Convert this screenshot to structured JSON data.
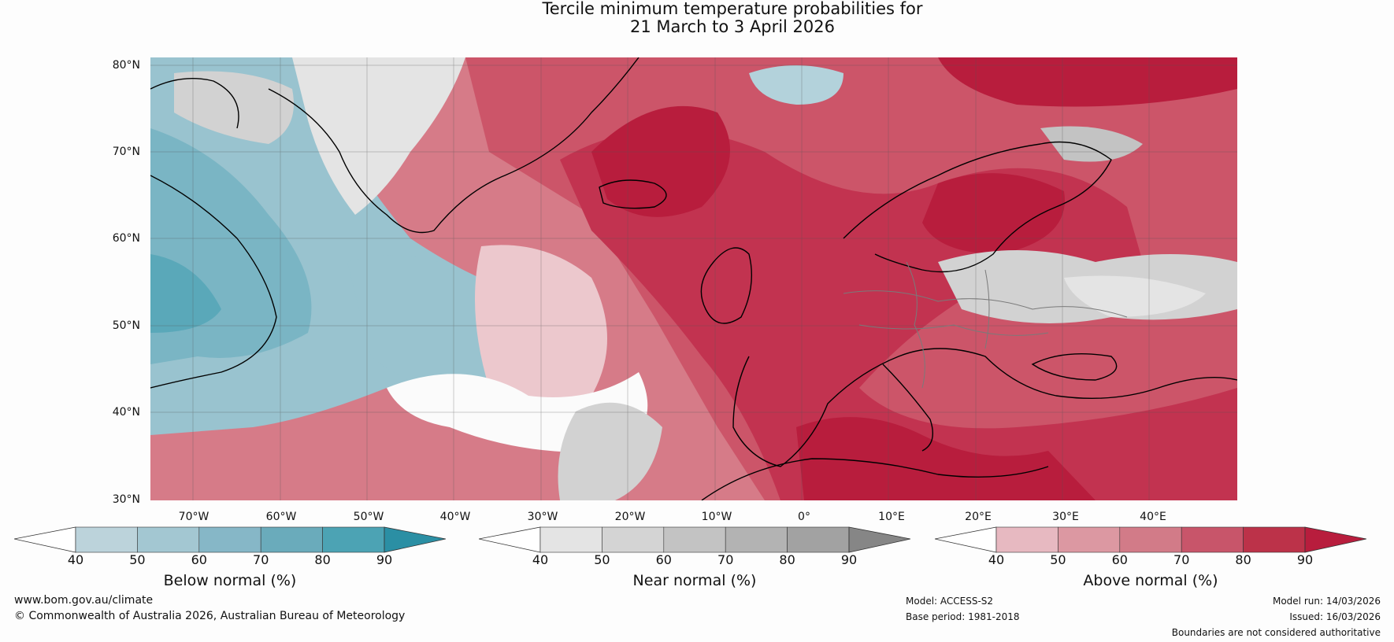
{
  "title": {
    "line1": "Tercile minimum temperature probabilities for",
    "line2": "21 March to 3 April 2026"
  },
  "latitude_labels": [
    "80°N",
    "70°N",
    "60°N",
    "50°N",
    "40°N",
    "30°N"
  ],
  "longitude_labels": [
    "70°W",
    "60°W",
    "50°W",
    "40°W",
    "30°W",
    "20°W",
    "10°W",
    "0°",
    "10°E",
    "20°E",
    "30°E",
    "40°E"
  ],
  "map": {
    "extent": {
      "lon_min": -75,
      "lon_max": 50,
      "lat_min": 30,
      "lat_max": 80
    },
    "regions": [
      {
        "name": "labrador-sea",
        "category": "below",
        "level": 70
      },
      {
        "name": "western-north-atlantic",
        "category": "below",
        "level": 60
      },
      {
        "name": "greenland-interior",
        "category": "near",
        "level": 40
      },
      {
        "name": "norwegian-sea",
        "category": "above",
        "level": 90
      },
      {
        "name": "western-europe",
        "category": "above",
        "level": 80
      },
      {
        "name": "scandinavia",
        "category": "above",
        "level": 80
      },
      {
        "name": "eastern-europe",
        "category": "near",
        "level": 50
      },
      {
        "name": "mediterranean",
        "category": "above",
        "level": 80
      },
      {
        "name": "central-atlantic",
        "category": "near",
        "level": 40
      }
    ]
  },
  "colorbars": [
    {
      "title": "Below normal (%)",
      "ticks": [
        "40",
        "50",
        "60",
        "70",
        "80",
        "90"
      ],
      "colors": [
        "#bcd3db",
        "#a3c7d2",
        "#86b7c7",
        "#6aabbb",
        "#4ca3b4",
        "#2b8fa4"
      ]
    },
    {
      "title": "Near normal (%)",
      "ticks": [
        "40",
        "50",
        "60",
        "70",
        "80",
        "90"
      ],
      "colors": [
        "#e4e4e4",
        "#d4d4d4",
        "#c3c3c3",
        "#b3b3b3",
        "#a2a2a2",
        "#868686"
      ]
    },
    {
      "title": "Above normal (%)",
      "ticks": [
        "40",
        "50",
        "60",
        "70",
        "80",
        "90"
      ],
      "colors": [
        "#e7b9c1",
        "#dc98a2",
        "#d27b88",
        "#c8556a",
        "#bc3249",
        "#b81d3d"
      ]
    }
  ],
  "footer": {
    "website": "www.bom.gov.au/climate",
    "copyright": "© Commonwealth of Australia 2026, Australian Bureau of Meteorology",
    "model": "Model: ACCESS-S2",
    "base_period": "Base period: 1981-2018",
    "model_run": "Model run: 14/03/2026",
    "issued": "Issued: 16/03/2026",
    "disclaimer": "Boundaries are not considered authoritative"
  },
  "colors": {
    "above_90": "#b81d3d",
    "above_80": "#c23350",
    "above_70": "#cc5569",
    "above_60": "#d67b88",
    "above_50": "#e0a0aa",
    "above_40": "#ecc8cd",
    "below_80": "#5aa8b9",
    "below_70": "#7ab5c4",
    "below_60": "#99c3cf",
    "below_50": "#b3d2db",
    "near_60": "#c3c3c3",
    "near_50": "#d2d2d2",
    "near_40": "#e4e4e4",
    "coast": "#000000",
    "border": "#7a7a7a",
    "grid": "#555555"
  }
}
